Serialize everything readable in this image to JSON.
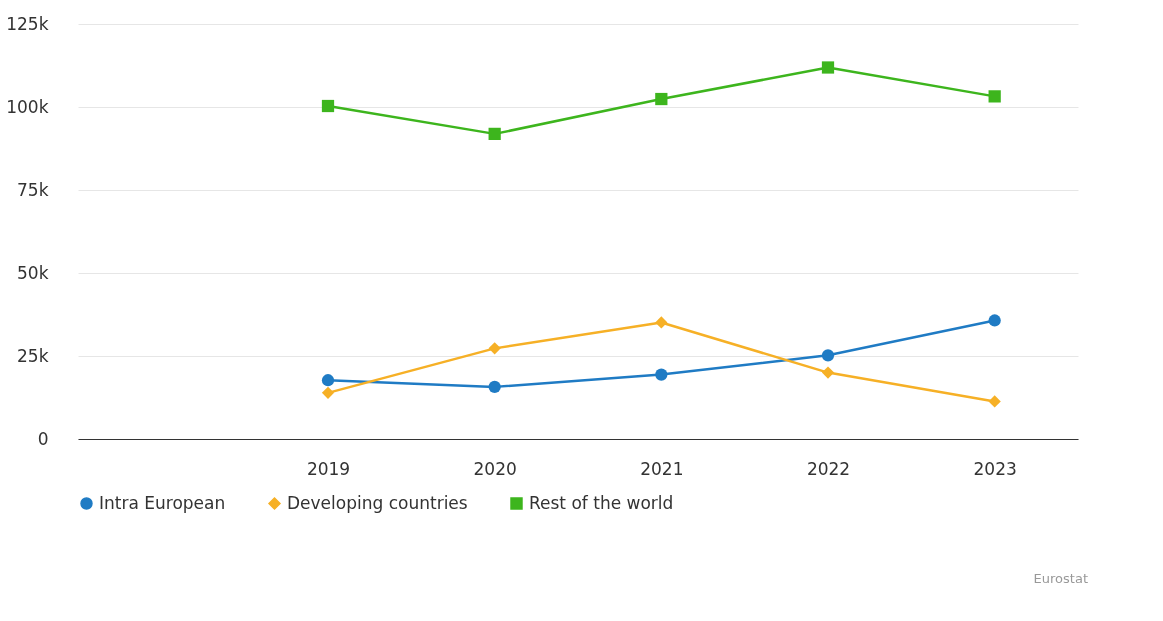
{
  "chart_data": {
    "type": "line",
    "categories": [
      null,
      "2019",
      "2020",
      "2021",
      "2022",
      "2023"
    ],
    "series": [
      {
        "name": "Intra European",
        "color": "#1f7bc4",
        "marker": "circle",
        "values": [
          null,
          17700,
          15700,
          19400,
          25200,
          35700
        ]
      },
      {
        "name": "Developing countries",
        "color": "#f6b026",
        "marker": "diamond",
        "values": [
          null,
          13900,
          27300,
          35100,
          20000,
          11300
        ]
      },
      {
        "name": "Rest of the world",
        "color": "#3db51d",
        "marker": "square",
        "values": [
          null,
          100300,
          91900,
          102400,
          111900,
          103200
        ]
      }
    ],
    "ylim": [
      0,
      125000
    ],
    "yticks": [
      {
        "value": 0,
        "label": "0"
      },
      {
        "value": 25000,
        "label": "25k"
      },
      {
        "value": 50000,
        "label": "50k"
      },
      {
        "value": 75000,
        "label": "75k"
      },
      {
        "value": 100000,
        "label": "100k"
      },
      {
        "value": 125000,
        "label": "125k"
      }
    ],
    "grid": "y",
    "legend": "bottom",
    "line_style": "solid",
    "annotations": [
      "Eurostat"
    ]
  }
}
